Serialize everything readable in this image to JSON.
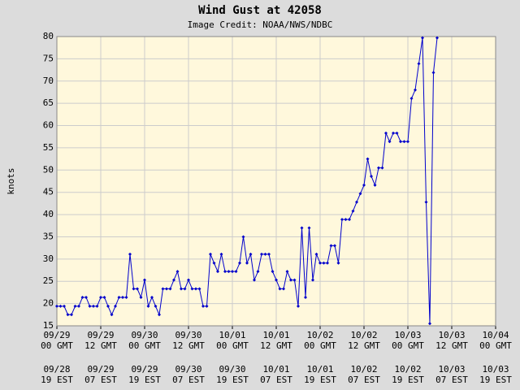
{
  "chart_data": {
    "type": "line",
    "title": "Wind Gust at 42058",
    "subtitle": "Image Credit: NOAA/NWS/NDBC",
    "ylabel": "knots",
    "grid": true,
    "xlim": [
      0,
      120
    ],
    "ylim": [
      15,
      80
    ],
    "yticks": [
      15,
      20,
      25,
      30,
      35,
      40,
      45,
      50,
      55,
      60,
      65,
      70,
      75,
      80
    ],
    "xticks": [
      {
        "value": 0,
        "label": "09/29\n00 GMT"
      },
      {
        "value": 12,
        "label": "09/29\n12 GMT"
      },
      {
        "value": 24,
        "label": "09/30\n00 GMT"
      },
      {
        "value": 36,
        "label": "09/30\n12 GMT"
      },
      {
        "value": 48,
        "label": "10/01\n00 GMT"
      },
      {
        "value": 60,
        "label": "10/01\n12 GMT"
      },
      {
        "value": 72,
        "label": "10/02\n00 GMT"
      },
      {
        "value": 84,
        "label": "10/02\n12 GMT"
      },
      {
        "value": 96,
        "label": "10/03\n00 GMT"
      },
      {
        "value": 108,
        "label": "10/03\n12 GMT"
      },
      {
        "value": 120,
        "label": "10/04\n00 GMT"
      }
    ],
    "xticks2": [
      {
        "value": 0,
        "label": "09/28\n19 EST"
      },
      {
        "value": 12,
        "label": "09/29\n07 EST"
      },
      {
        "value": 24,
        "label": "09/29\n19 EST"
      },
      {
        "value": 36,
        "label": "09/30\n07 EST"
      },
      {
        "value": 48,
        "label": "09/30\n19 EST"
      },
      {
        "value": 60,
        "label": "10/01\n07 EST"
      },
      {
        "value": 72,
        "label": "10/01\n19 EST"
      },
      {
        "value": 84,
        "label": "10/02\n07 EST"
      },
      {
        "value": 96,
        "label": "10/02\n19 EST"
      },
      {
        "value": 108,
        "label": "10/03\n07 EST"
      },
      {
        "value": 120,
        "label": "10/03\n19 EST"
      }
    ],
    "x": [
      0,
      1,
      2,
      3,
      4,
      5,
      6,
      7,
      8,
      9,
      10,
      11,
      12,
      13,
      14,
      15,
      16,
      17,
      18,
      19,
      20,
      21,
      22,
      23,
      24,
      25,
      26,
      27,
      28,
      29,
      30,
      31,
      32,
      33,
      34,
      35,
      36,
      37,
      38,
      39,
      40,
      41,
      42,
      43,
      44,
      45,
      46,
      47,
      48,
      49,
      50,
      51,
      52,
      53,
      54,
      55,
      56,
      57,
      58,
      59,
      60,
      61,
      62,
      63,
      64,
      65,
      66,
      67,
      68,
      69,
      70,
      71,
      72,
      73,
      74,
      75,
      76,
      77,
      78,
      79,
      80,
      81,
      82,
      83,
      84,
      85,
      86,
      87,
      88,
      89,
      90,
      91,
      92,
      93,
      94,
      95,
      96,
      97,
      98,
      99,
      100,
      101,
      102,
      103,
      104
    ],
    "series": [
      {
        "color": "#0000cc",
        "values": [
          19.4,
          19.4,
          19.4,
          17.5,
          17.5,
          19.4,
          19.4,
          21.4,
          21.4,
          19.4,
          19.4,
          19.4,
          21.4,
          21.4,
          19.4,
          17.5,
          19.4,
          21.4,
          21.4,
          21.4,
          31.1,
          23.3,
          23.3,
          21.4,
          25.3,
          19.4,
          21.4,
          19.4,
          17.5,
          23.3,
          23.3,
          23.3,
          25.3,
          27.2,
          23.3,
          23.3,
          25.3,
          23.3,
          23.3,
          23.3,
          19.4,
          19.4,
          31.1,
          29.1,
          27.2,
          31.1,
          27.2,
          27.2,
          27.2,
          27.2,
          29.1,
          35,
          29.1,
          31.1,
          25.3,
          27.2,
          31.1,
          31.1,
          31.1,
          27.2,
          25.3,
          23.3,
          23.3,
          27.2,
          25.3,
          25.3,
          19.4,
          37,
          21.4,
          37,
          25.3,
          31.1,
          29.1,
          29.1,
          29.1,
          33,
          33,
          29.1,
          38.9,
          38.9,
          38.9,
          40.8,
          42.8,
          44.7,
          46.6,
          52.5,
          48.6,
          46.6,
          50.5,
          50.5,
          58.3,
          56.4,
          58.3,
          58.3,
          56.4,
          56.4,
          56.4,
          66.1,
          68,
          73.9,
          79.7,
          42.8,
          15.5,
          71.9,
          79.7
        ]
      }
    ]
  }
}
